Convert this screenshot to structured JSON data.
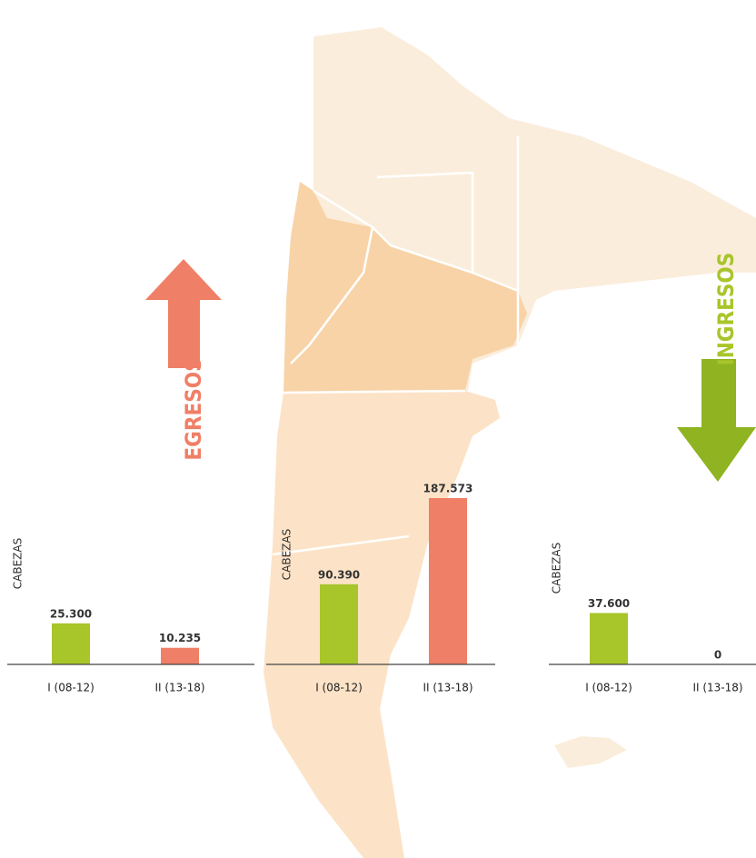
{
  "labels": {
    "egresos": "EGRESOS",
    "ingresos": "INGRESOS"
  },
  "chart_data": [
    {
      "type": "bar",
      "y_label": "CABEZAS",
      "categories": [
        "I (08-12)",
        "II (13-18)"
      ],
      "values": [
        25300,
        10235
      ],
      "value_labels": [
        "25.300",
        "10.235"
      ],
      "colors": [
        "#a8c52a",
        "#ef7f66"
      ],
      "ylim": [
        0,
        112000
      ]
    },
    {
      "type": "bar",
      "y_label": "CABEZAS",
      "categories": [
        "I (08-12)",
        "II (13-18)"
      ],
      "values": [
        90390,
        187573
      ],
      "value_labels": [
        "90.390",
        "187.573"
      ],
      "colors": [
        "#a8c52a",
        "#ef7f66"
      ],
      "ylim": [
        0,
        205000
      ]
    },
    {
      "type": "bar",
      "y_label": "CABEZAS",
      "categories": [
        "I (08-12)",
        "II (13-18)"
      ],
      "values": [
        37600,
        0
      ],
      "value_labels": [
        "37.600",
        "0"
      ],
      "colors": [
        "#a8c52a",
        "#ef7f66"
      ],
      "ylim": [
        0,
        133000
      ]
    }
  ]
}
